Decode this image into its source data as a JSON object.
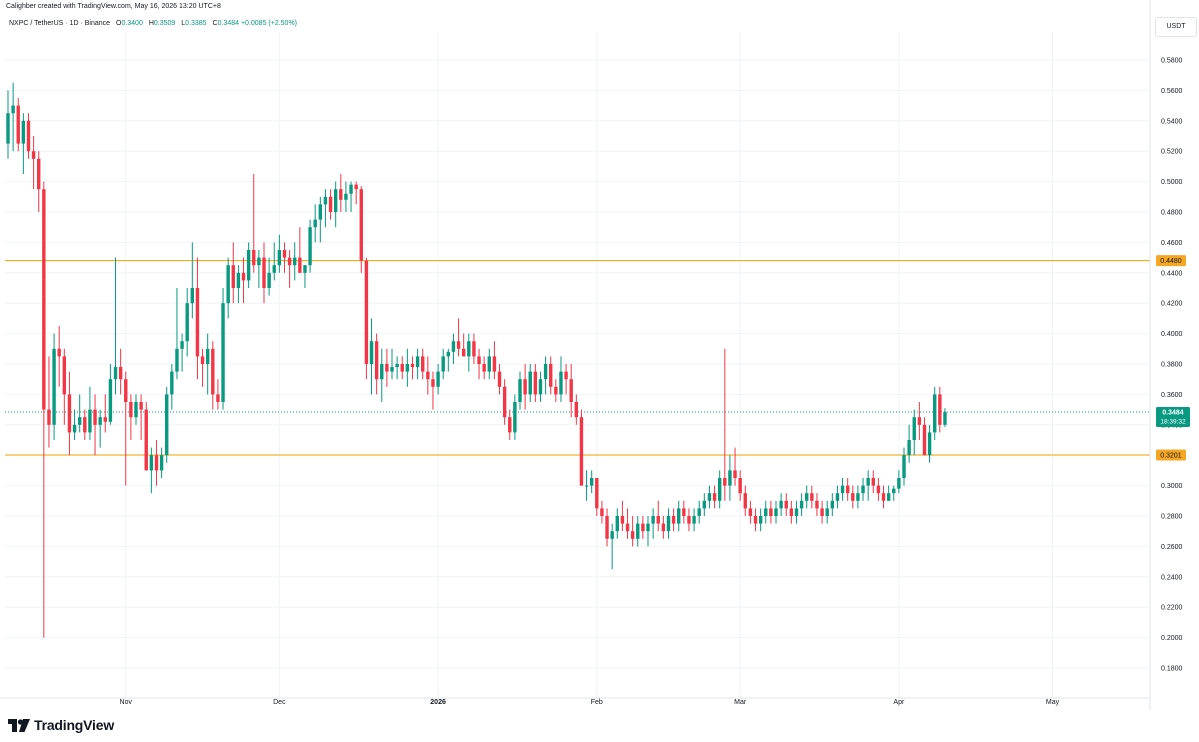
{
  "header": {
    "created_by": "Calighber created with TradingView.com, May 16, 2026 13:20 UTC+8"
  },
  "legend": {
    "symbol": "NXPC / TetherUS · 1D · Binance",
    "open_label": "O",
    "open": "0.3400",
    "high_label": "H",
    "high": "0.3509",
    "low_label": "L",
    "low": "0.3385",
    "close_label": "C",
    "close": "0.3484",
    "change": "+0.0085 (+2.50%)"
  },
  "currency": "USDT",
  "logo": {
    "text": "TradingView"
  },
  "colors": {
    "up": "#089981",
    "down": "#f23645",
    "level_line": "#f0a500",
    "level_label_bg": "#f5a623",
    "price_label_bg": "#089981",
    "grid": "#f0f3fa",
    "axis_text": "#131722"
  },
  "chart_data": {
    "type": "candlestick",
    "y_axis": {
      "min": 0.17,
      "max": 0.59,
      "ticks": [
        "0.5800",
        "0.5600",
        "0.5400",
        "0.5200",
        "0.5000",
        "0.4800",
        "0.4600",
        "0.4400",
        "0.4200",
        "0.4000",
        "0.3800",
        "0.3600",
        "0.3400",
        "0.3200",
        "0.3000",
        "0.2800",
        "0.2600",
        "0.2400",
        "0.2200",
        "0.2000",
        "0.1800"
      ]
    },
    "x_axis": {
      "labels": [
        {
          "text": "Nov",
          "index": 23
        },
        {
          "text": "Dec",
          "index": 53
        },
        {
          "text": "2026",
          "index": 84
        },
        {
          "text": "Feb",
          "index": 115
        },
        {
          "text": "Mar",
          "index": 143
        },
        {
          "text": "Apr",
          "index": 174
        },
        {
          "text": "May",
          "index": 204
        }
      ]
    },
    "horizontal_levels": [
      {
        "value": 0.448,
        "label": "0.4480"
      },
      {
        "value": 0.3201,
        "label": "0.3201"
      }
    ],
    "current_price": {
      "value": 0.3484,
      "label": "0.3484",
      "countdown": "18:39:32"
    },
    "grid": true,
    "candles": [
      [
        0.525,
        0.56,
        0.515,
        0.545
      ],
      [
        0.545,
        0.565,
        0.52,
        0.55
      ],
      [
        0.55,
        0.555,
        0.52,
        0.525
      ],
      [
        0.525,
        0.545,
        0.505,
        0.54
      ],
      [
        0.54,
        0.545,
        0.515,
        0.52
      ],
      [
        0.52,
        0.53,
        0.495,
        0.515
      ],
      [
        0.515,
        0.52,
        0.48,
        0.495
      ],
      [
        0.495,
        0.5,
        0.2,
        0.35
      ],
      [
        0.35,
        0.385,
        0.325,
        0.34
      ],
      [
        0.34,
        0.4,
        0.33,
        0.39
      ],
      [
        0.39,
        0.405,
        0.365,
        0.385
      ],
      [
        0.385,
        0.39,
        0.34,
        0.36
      ],
      [
        0.36,
        0.375,
        0.32,
        0.335
      ],
      [
        0.335,
        0.35,
        0.33,
        0.34
      ],
      [
        0.34,
        0.36,
        0.335,
        0.345
      ],
      [
        0.345,
        0.35,
        0.33,
        0.335
      ],
      [
        0.335,
        0.365,
        0.33,
        0.35
      ],
      [
        0.35,
        0.36,
        0.32,
        0.34
      ],
      [
        0.34,
        0.35,
        0.325,
        0.345
      ],
      [
        0.345,
        0.36,
        0.335,
        0.342
      ],
      [
        0.342,
        0.38,
        0.34,
        0.37
      ],
      [
        0.37,
        0.45,
        0.36,
        0.378
      ],
      [
        0.378,
        0.39,
        0.36,
        0.37
      ],
      [
        0.37,
        0.375,
        0.3,
        0.355
      ],
      [
        0.355,
        0.36,
        0.33,
        0.345
      ],
      [
        0.345,
        0.36,
        0.34,
        0.355
      ],
      [
        0.355,
        0.36,
        0.33,
        0.35
      ],
      [
        0.35,
        0.355,
        0.31,
        0.31
      ],
      [
        0.31,
        0.325,
        0.295,
        0.32
      ],
      [
        0.32,
        0.33,
        0.3,
        0.31
      ],
      [
        0.31,
        0.325,
        0.305,
        0.32
      ],
      [
        0.32,
        0.365,
        0.315,
        0.36
      ],
      [
        0.36,
        0.38,
        0.35,
        0.375
      ],
      [
        0.375,
        0.43,
        0.37,
        0.39
      ],
      [
        0.39,
        0.4,
        0.375,
        0.395
      ],
      [
        0.395,
        0.43,
        0.385,
        0.42
      ],
      [
        0.42,
        0.46,
        0.41,
        0.43
      ],
      [
        0.43,
        0.45,
        0.37,
        0.385
      ],
      [
        0.385,
        0.39,
        0.365,
        0.38
      ],
      [
        0.38,
        0.4,
        0.36,
        0.39
      ],
      [
        0.39,
        0.395,
        0.35,
        0.36
      ],
      [
        0.36,
        0.37,
        0.35,
        0.355
      ],
      [
        0.355,
        0.43,
        0.35,
        0.42
      ],
      [
        0.42,
        0.45,
        0.41,
        0.445
      ],
      [
        0.445,
        0.46,
        0.42,
        0.43
      ],
      [
        0.43,
        0.445,
        0.42,
        0.44
      ],
      [
        0.44,
        0.45,
        0.42,
        0.435
      ],
      [
        0.435,
        0.46,
        0.43,
        0.455
      ],
      [
        0.455,
        0.505,
        0.44,
        0.445
      ],
      [
        0.445,
        0.455,
        0.43,
        0.45
      ],
      [
        0.45,
        0.46,
        0.42,
        0.43
      ],
      [
        0.43,
        0.45,
        0.425,
        0.44
      ],
      [
        0.44,
        0.46,
        0.435,
        0.445
      ],
      [
        0.445,
        0.465,
        0.44,
        0.455
      ],
      [
        0.455,
        0.46,
        0.44,
        0.45
      ],
      [
        0.45,
        0.455,
        0.43,
        0.445
      ],
      [
        0.445,
        0.46,
        0.435,
        0.45
      ],
      [
        0.45,
        0.47,
        0.44,
        0.44
      ],
      [
        0.44,
        0.445,
        0.43,
        0.445
      ],
      [
        0.445,
        0.475,
        0.44,
        0.47
      ],
      [
        0.47,
        0.485,
        0.46,
        0.475
      ],
      [
        0.475,
        0.49,
        0.46,
        0.485
      ],
      [
        0.485,
        0.495,
        0.47,
        0.49
      ],
      [
        0.49,
        0.495,
        0.475,
        0.48
      ],
      [
        0.48,
        0.5,
        0.47,
        0.495
      ],
      [
        0.495,
        0.505,
        0.48,
        0.488
      ],
      [
        0.488,
        0.5,
        0.48,
        0.492
      ],
      [
        0.492,
        0.5,
        0.48,
        0.498
      ],
      [
        0.498,
        0.5,
        0.485,
        0.495
      ],
      [
        0.495,
        0.497,
        0.44,
        0.448
      ],
      [
        0.448,
        0.45,
        0.37,
        0.38
      ],
      [
        0.38,
        0.41,
        0.36,
        0.395
      ],
      [
        0.395,
        0.4,
        0.36,
        0.37
      ],
      [
        0.37,
        0.39,
        0.355,
        0.38
      ],
      [
        0.38,
        0.39,
        0.365,
        0.375
      ],
      [
        0.375,
        0.39,
        0.37,
        0.378
      ],
      [
        0.378,
        0.385,
        0.37,
        0.38
      ],
      [
        0.38,
        0.385,
        0.37,
        0.375
      ],
      [
        0.375,
        0.39,
        0.365,
        0.38
      ],
      [
        0.38,
        0.385,
        0.37,
        0.378
      ],
      [
        0.378,
        0.39,
        0.37,
        0.385
      ],
      [
        0.385,
        0.39,
        0.37,
        0.375
      ],
      [
        0.375,
        0.385,
        0.36,
        0.37
      ],
      [
        0.37,
        0.375,
        0.35,
        0.365
      ],
      [
        0.365,
        0.38,
        0.36,
        0.375
      ],
      [
        0.375,
        0.39,
        0.37,
        0.385
      ],
      [
        0.385,
        0.39,
        0.375,
        0.388
      ],
      [
        0.388,
        0.4,
        0.38,
        0.395
      ],
      [
        0.395,
        0.41,
        0.385,
        0.39
      ],
      [
        0.39,
        0.4,
        0.385,
        0.385
      ],
      [
        0.385,
        0.4,
        0.375,
        0.395
      ],
      [
        0.395,
        0.4,
        0.38,
        0.385
      ],
      [
        0.385,
        0.39,
        0.37,
        0.38
      ],
      [
        0.38,
        0.385,
        0.37,
        0.375
      ],
      [
        0.375,
        0.39,
        0.37,
        0.385
      ],
      [
        0.385,
        0.395,
        0.37,
        0.375
      ],
      [
        0.375,
        0.38,
        0.36,
        0.365
      ],
      [
        0.365,
        0.37,
        0.34,
        0.345
      ],
      [
        0.345,
        0.35,
        0.33,
        0.335
      ],
      [
        0.335,
        0.36,
        0.33,
        0.355
      ],
      [
        0.355,
        0.375,
        0.35,
        0.37
      ],
      [
        0.37,
        0.38,
        0.35,
        0.36
      ],
      [
        0.36,
        0.38,
        0.355,
        0.375
      ],
      [
        0.375,
        0.38,
        0.355,
        0.36
      ],
      [
        0.36,
        0.375,
        0.355,
        0.37
      ],
      [
        0.37,
        0.385,
        0.36,
        0.38
      ],
      [
        0.38,
        0.385,
        0.36,
        0.365
      ],
      [
        0.365,
        0.37,
        0.355,
        0.36
      ],
      [
        0.36,
        0.385,
        0.355,
        0.375
      ],
      [
        0.375,
        0.38,
        0.36,
        0.37
      ],
      [
        0.37,
        0.38,
        0.345,
        0.355
      ],
      [
        0.355,
        0.36,
        0.34,
        0.345
      ],
      [
        0.345,
        0.35,
        0.3,
        0.3
      ],
      [
        0.3,
        0.31,
        0.29,
        0.3
      ],
      [
        0.3,
        0.31,
        0.295,
        0.305
      ],
      [
        0.305,
        0.305,
        0.28,
        0.285
      ],
      [
        0.285,
        0.29,
        0.275,
        0.28
      ],
      [
        0.28,
        0.285,
        0.26,
        0.265
      ],
      [
        0.265,
        0.275,
        0.245,
        0.27
      ],
      [
        0.27,
        0.285,
        0.265,
        0.28
      ],
      [
        0.28,
        0.29,
        0.27,
        0.275
      ],
      [
        0.275,
        0.285,
        0.265,
        0.27
      ],
      [
        0.27,
        0.28,
        0.26,
        0.265
      ],
      [
        0.265,
        0.28,
        0.26,
        0.275
      ],
      [
        0.275,
        0.28,
        0.265,
        0.27
      ],
      [
        0.27,
        0.28,
        0.26,
        0.275
      ],
      [
        0.275,
        0.285,
        0.265,
        0.28
      ],
      [
        0.28,
        0.29,
        0.27,
        0.275
      ],
      [
        0.275,
        0.28,
        0.265,
        0.27
      ],
      [
        0.27,
        0.285,
        0.265,
        0.28
      ],
      [
        0.28,
        0.285,
        0.27,
        0.275
      ],
      [
        0.275,
        0.29,
        0.27,
        0.285
      ],
      [
        0.285,
        0.29,
        0.275,
        0.28
      ],
      [
        0.28,
        0.285,
        0.27,
        0.275
      ],
      [
        0.275,
        0.285,
        0.27,
        0.28
      ],
      [
        0.28,
        0.29,
        0.275,
        0.285
      ],
      [
        0.285,
        0.295,
        0.28,
        0.29
      ],
      [
        0.29,
        0.3,
        0.285,
        0.295
      ],
      [
        0.295,
        0.3,
        0.285,
        0.29
      ],
      [
        0.29,
        0.31,
        0.285,
        0.305
      ],
      [
        0.305,
        0.39,
        0.29,
        0.3
      ],
      [
        0.3,
        0.32,
        0.29,
        0.31
      ],
      [
        0.31,
        0.325,
        0.3,
        0.305
      ],
      [
        0.305,
        0.31,
        0.29,
        0.295
      ],
      [
        0.295,
        0.3,
        0.28,
        0.285
      ],
      [
        0.285,
        0.29,
        0.275,
        0.28
      ],
      [
        0.28,
        0.285,
        0.27,
        0.275
      ],
      [
        0.275,
        0.285,
        0.27,
        0.28
      ],
      [
        0.28,
        0.29,
        0.275,
        0.285
      ],
      [
        0.285,
        0.29,
        0.275,
        0.28
      ],
      [
        0.28,
        0.29,
        0.275,
        0.285
      ],
      [
        0.285,
        0.295,
        0.28,
        0.29
      ],
      [
        0.29,
        0.295,
        0.28,
        0.285
      ],
      [
        0.285,
        0.29,
        0.275,
        0.28
      ],
      [
        0.28,
        0.29,
        0.275,
        0.285
      ],
      [
        0.285,
        0.295,
        0.28,
        0.29
      ],
      [
        0.29,
        0.3,
        0.285,
        0.295
      ],
      [
        0.295,
        0.3,
        0.285,
        0.29
      ],
      [
        0.29,
        0.295,
        0.28,
        0.285
      ],
      [
        0.285,
        0.29,
        0.275,
        0.28
      ],
      [
        0.28,
        0.29,
        0.275,
        0.285
      ],
      [
        0.285,
        0.295,
        0.28,
        0.29
      ],
      [
        0.29,
        0.3,
        0.285,
        0.295
      ],
      [
        0.295,
        0.305,
        0.29,
        0.3
      ],
      [
        0.3,
        0.305,
        0.29,
        0.295
      ],
      [
        0.295,
        0.3,
        0.285,
        0.29
      ],
      [
        0.29,
        0.3,
        0.285,
        0.295
      ],
      [
        0.295,
        0.305,
        0.29,
        0.3
      ],
      [
        0.3,
        0.31,
        0.29,
        0.305
      ],
      [
        0.305,
        0.31,
        0.295,
        0.3
      ],
      [
        0.3,
        0.305,
        0.29,
        0.295
      ],
      [
        0.295,
        0.3,
        0.285,
        0.29
      ],
      [
        0.29,
        0.3,
        0.29,
        0.295
      ],
      [
        0.295,
        0.3,
        0.29,
        0.298
      ],
      [
        0.298,
        0.31,
        0.295,
        0.305
      ],
      [
        0.305,
        0.325,
        0.3,
        0.32
      ],
      [
        0.32,
        0.34,
        0.315,
        0.33
      ],
      [
        0.33,
        0.35,
        0.32,
        0.345
      ],
      [
        0.345,
        0.355,
        0.33,
        0.34
      ],
      [
        0.34,
        0.345,
        0.32,
        0.32
      ],
      [
        0.32,
        0.34,
        0.315,
        0.335
      ],
      [
        0.335,
        0.365,
        0.33,
        0.36
      ],
      [
        0.36,
        0.365,
        0.335,
        0.34
      ],
      [
        0.34,
        0.3509,
        0.3385,
        0.3484
      ]
    ]
  }
}
